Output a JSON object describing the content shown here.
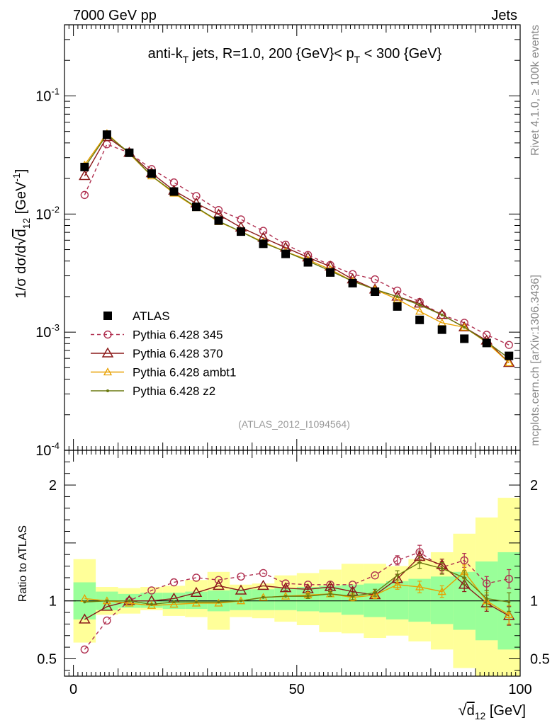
{
  "chart_data": [
    {
      "type": "line",
      "header_left": "7000 GeV pp",
      "header_right": "Jets",
      "title_main": "anti-k",
      "title_sub": "T",
      "title_mid": " jets, R=1.0, 200 {GeV}< p",
      "title_sub2": "T",
      "title_end": " < 300 {GeV}",
      "ylabel": "1/σ dσ/d√d12 [GeV⁻¹]",
      "ylabel_pre": "1/σ dσ/d",
      "ylabel_root": "d",
      "ylabel_sub": "12",
      "ylabel_unit": " [GeV",
      "ylabel_sup": "-1",
      "ylabel_close": "]",
      "yscale": "log",
      "ylim": [
        0.0001,
        0.4
      ],
      "yticks": [
        {
          "base": "10",
          "exp": "-1",
          "value": 0.1
        },
        {
          "base": "10",
          "exp": "-2",
          "value": 0.01
        },
        {
          "base": "10",
          "exp": "-3",
          "value": 0.001
        },
        {
          "base": "10",
          "exp": "-4",
          "value": 0.0001
        }
      ],
      "xlim": [
        -2,
        100
      ],
      "reference": "(ATLAS_2012_I1094564)",
      "side_label_top": "Rivet 4.1.0, ≥ 100k events",
      "side_label_bottom": "mcplots.cern.ch [arXiv:1306.3436]",
      "legend_position": "lower-left",
      "x": [
        2.5,
        7.5,
        12.5,
        17.5,
        22.5,
        27.5,
        32.5,
        37.5,
        42.5,
        47.5,
        52.5,
        57.5,
        62.5,
        67.5,
        72.5,
        77.5,
        82.5,
        87.5,
        92.5,
        97.5
      ],
      "series": [
        {
          "name": "ATLAS",
          "color": "#000000",
          "marker": "square",
          "values": [
            0.025,
            0.047,
            0.033,
            0.022,
            0.0155,
            0.0115,
            0.0088,
            0.0071,
            0.0056,
            0.0046,
            0.0039,
            0.0032,
            0.0026,
            0.0022,
            0.00165,
            0.00127,
            0.00105,
            0.00088,
            0.00081,
            0.00063
          ]
        },
        {
          "name": "Pythia 6.428 345",
          "color": "#b03050",
          "marker": "circle",
          "dash": "5,4",
          "values": [
            0.0145,
            0.039,
            0.033,
            0.024,
            0.0185,
            0.0142,
            0.0108,
            0.009,
            0.0072,
            0.0055,
            0.0045,
            0.0037,
            0.0031,
            0.0028,
            0.00225,
            0.0018,
            0.0014,
            0.0012,
            0.00095,
            0.00078
          ]
        },
        {
          "name": "Pythia 6.428 370",
          "color": "#8b1a1a",
          "marker": "triangle",
          "values": [
            0.021,
            0.045,
            0.033,
            0.0222,
            0.0158,
            0.0123,
            0.0099,
            0.0077,
            0.0063,
            0.0052,
            0.0043,
            0.0036,
            0.0028,
            0.0023,
            0.002,
            0.00175,
            0.0014,
            0.0011,
            0.00085,
            0.00055
          ]
        },
        {
          "name": "Pythia 6.428 ambt1",
          "color": "#e8a000",
          "marker": "triangle-small",
          "values": [
            0.026,
            0.048,
            0.0325,
            0.021,
            0.015,
            0.0113,
            0.0086,
            0.0071,
            0.0058,
            0.0048,
            0.0041,
            0.0034,
            0.0027,
            0.0023,
            0.0019,
            0.0015,
            0.0012,
            0.0011,
            0.00082,
            0.00055
          ]
        },
        {
          "name": "Pythia 6.428 z2",
          "color": "#6b7a10",
          "marker": "dot",
          "values": [
            0.0248,
            0.047,
            0.033,
            0.021,
            0.0153,
            0.0114,
            0.0087,
            0.0071,
            0.0057,
            0.0048,
            0.004,
            0.0033,
            0.0027,
            0.0023,
            0.002,
            0.0017,
            0.0014,
            0.0011,
            0.00083,
            0.0006
          ]
        }
      ]
    },
    {
      "type": "line",
      "ylabel": "Ratio to ATLAS",
      "ylim": [
        0.35,
        2.3
      ],
      "yticks": [
        {
          "label": "2",
          "value": 2
        },
        {
          "label": "1",
          "value": 1
        },
        {
          "label": "0.5",
          "value": 0.5
        }
      ],
      "xlabel_root": "d",
      "xlabel_sub": "12",
      "xlabel_unit": " [GeV]",
      "xlabel": "√d12 [GeV]",
      "xlim": [
        -2,
        100
      ],
      "xticks": [
        {
          "label": "0",
          "value": 0
        },
        {
          "label": "50",
          "value": 50
        },
        {
          "label": "100",
          "value": 100
        }
      ],
      "bins": [
        [
          0,
          5
        ],
        [
          5,
          10
        ],
        [
          10,
          15
        ],
        [
          15,
          20
        ],
        [
          20,
          25
        ],
        [
          25,
          30
        ],
        [
          30,
          35
        ],
        [
          35,
          40
        ],
        [
          40,
          45
        ],
        [
          45,
          50
        ],
        [
          50,
          55
        ],
        [
          55,
          60
        ],
        [
          60,
          65
        ],
        [
          65,
          70
        ],
        [
          70,
          75
        ],
        [
          75,
          80
        ],
        [
          80,
          85
        ],
        [
          85,
          90
        ],
        [
          90,
          95
        ],
        [
          95,
          100
        ]
      ],
      "band_stat_low": [
        0.84,
        0.92,
        0.94,
        0.94,
        0.93,
        0.93,
        0.91,
        0.92,
        0.92,
        0.92,
        0.91,
        0.9,
        0.88,
        0.86,
        0.84,
        0.82,
        0.8,
        0.75,
        0.66,
        0.58
      ],
      "band_stat_high": [
        1.16,
        1.08,
        1.06,
        1.07,
        1.07,
        1.08,
        1.09,
        1.1,
        1.1,
        1.11,
        1.12,
        1.13,
        1.14,
        1.15,
        1.17,
        1.19,
        1.21,
        1.25,
        1.34,
        1.42
      ],
      "band_total_low": [
        0.64,
        0.88,
        0.89,
        0.92,
        0.87,
        0.86,
        0.75,
        0.86,
        0.85,
        0.82,
        0.79,
        0.73,
        0.72,
        0.68,
        0.7,
        0.65,
        0.58,
        0.42,
        0.33,
        0.29
      ],
      "band_total_high": [
        1.36,
        1.12,
        1.11,
        1.12,
        1.13,
        1.18,
        1.25,
        1.14,
        1.15,
        1.22,
        1.24,
        1.27,
        1.32,
        1.32,
        1.3,
        1.36,
        1.42,
        1.58,
        1.72,
        1.89
      ],
      "series": [
        {
          "name": "Pythia 6.428 345",
          "color": "#b03050",
          "marker": "circle",
          "dash": "5,4",
          "values": [
            0.58,
            0.83,
            1.0,
            1.09,
            1.16,
            1.2,
            1.18,
            1.21,
            1.24,
            1.15,
            1.14,
            1.14,
            1.14,
            1.22,
            1.35,
            1.42,
            1.29,
            1.35,
            1.15,
            1.19
          ],
          "errors": [
            0,
            0,
            0,
            0,
            0,
            0,
            0,
            0,
            0,
            0,
            0,
            0,
            0,
            0,
            0.04,
            0.06,
            0.05,
            0.06,
            0.06,
            0.08
          ]
        },
        {
          "name": "Pythia 6.428 370",
          "color": "#8b1a1a",
          "marker": "triangle",
          "values": [
            0.84,
            0.95,
            1.0,
            1.0,
            1.02,
            1.07,
            1.13,
            1.09,
            1.13,
            1.11,
            1.1,
            1.12,
            1.08,
            1.05,
            1.19,
            1.38,
            1.31,
            1.14,
            0.98,
            0.87
          ],
          "errors": [
            0,
            0,
            0,
            0,
            0,
            0,
            0,
            0,
            0,
            0.02,
            0.02,
            0.02,
            0.03,
            0.03,
            0.04,
            0.05,
            0.05,
            0.06,
            0.07,
            0.08
          ]
        },
        {
          "name": "Pythia 6.428 ambt1",
          "color": "#e8a000",
          "marker": "triangle-small",
          "values": [
            1.02,
            1.0,
            0.98,
            0.96,
            0.97,
            0.98,
            0.98,
            1.0,
            1.03,
            1.04,
            1.05,
            1.06,
            1.03,
            1.05,
            1.14,
            1.12,
            1.08,
            1.25,
            1.0,
            0.88
          ],
          "errors": [
            0,
            0,
            0,
            0,
            0,
            0,
            0,
            0,
            0,
            0,
            0.02,
            0.02,
            0.03,
            0.03,
            0.04,
            0.05,
            0.05,
            0.06,
            0.07,
            0.08
          ]
        },
        {
          "name": "Pythia 6.428 z2",
          "color": "#6b7a10",
          "marker": "dot",
          "values": [
            0.99,
            1.0,
            1.0,
            0.97,
            0.99,
            0.99,
            0.99,
            1.0,
            1.03,
            1.04,
            1.04,
            1.06,
            1.04,
            1.07,
            1.22,
            1.33,
            1.28,
            1.2,
            1.02,
            0.99
          ],
          "errors": [
            0,
            0,
            0,
            0,
            0,
            0,
            0,
            0,
            0,
            0,
            0.02,
            0.02,
            0.03,
            0.03,
            0.04,
            0.05,
            0.05,
            0.06,
            0.07,
            0.08
          ]
        }
      ]
    }
  ]
}
